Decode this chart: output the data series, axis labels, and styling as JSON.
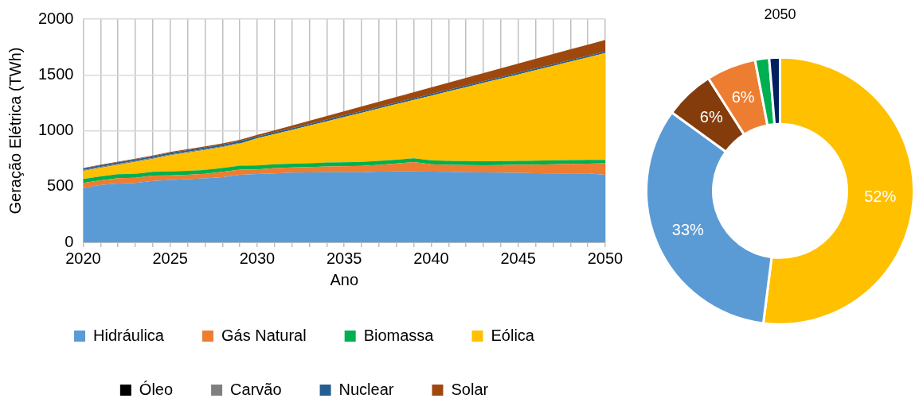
{
  "chart_data": [
    {
      "type": "area",
      "stacked": true,
      "xlabel": "Ano",
      "ylabel": "Geração Elétrica (TWh)",
      "x": [
        2020,
        2021,
        2022,
        2023,
        2024,
        2025,
        2026,
        2027,
        2028,
        2029,
        2030,
        2031,
        2032,
        2033,
        2034,
        2035,
        2036,
        2037,
        2038,
        2039,
        2040,
        2041,
        2042,
        2043,
        2044,
        2045,
        2046,
        2047,
        2048,
        2049,
        2050
      ],
      "series": [
        {
          "name": "Hidráulica",
          "color": "#5b9bd5",
          "values": [
            484,
            515,
            527,
            532,
            549,
            559,
            566,
            573,
            583,
            605,
            612,
            617,
            624,
            626,
            629,
            629,
            629,
            634,
            636,
            636,
            634,
            631,
            629,
            626,
            624,
            622,
            619,
            617,
            617,
            617,
            605
          ]
        },
        {
          "name": "Gás Natural",
          "color": "#ed7d31",
          "values": [
            48,
            41,
            48,
            46,
            48,
            41,
            39,
            41,
            48,
            46,
            41,
            48,
            46,
            48,
            51,
            53,
            56,
            60,
            70,
            82,
            65,
            63,
            63,
            65,
            68,
            73,
            77,
            82,
            85,
            87,
            104
          ]
        },
        {
          "name": "Biomassa",
          "color": "#00b050",
          "values": [
            35,
            35,
            35,
            35,
            35,
            35,
            35,
            35,
            35,
            35,
            35,
            35,
            35,
            35,
            35,
            35,
            35,
            35,
            35,
            35,
            35,
            35,
            35,
            35,
            35,
            35,
            35,
            35,
            35,
            35,
            30
          ]
        },
        {
          "name": "Eólica",
          "color": "#ffc000",
          "values": [
            72,
            77,
            84,
            108,
            116,
            144,
            163,
            178,
            186,
            198,
            244,
            270,
            303,
            337,
            369,
            406,
            440,
            470,
            497,
            522,
            580,
            623,
            663,
            702,
            739,
            774,
            812,
            846,
            882,
            917,
            956
          ]
        },
        {
          "name": "Óleo",
          "color": "#000000",
          "values": [
            null,
            null,
            null,
            null,
            null,
            null,
            null,
            null,
            null,
            null,
            null,
            null,
            null,
            null,
            null,
            null,
            null,
            null,
            null,
            null,
            null,
            null,
            null,
            null,
            null,
            null,
            null,
            null,
            null,
            null,
            null
          ]
        },
        {
          "name": "Carvão",
          "color": "#7f7f7f",
          "values": [
            8,
            8,
            8,
            8,
            8,
            8,
            8,
            8,
            8,
            8,
            null,
            null,
            null,
            null,
            null,
            null,
            null,
            null,
            null,
            null,
            null,
            null,
            null,
            null,
            null,
            null,
            null,
            null,
            null,
            null,
            null
          ]
        },
        {
          "name": "Nuclear",
          "color": "#255e91",
          "values": [
            15,
            15,
            15,
            15,
            15,
            15,
            15,
            15,
            15,
            15,
            15,
            15,
            15,
            15,
            15,
            15,
            15,
            15,
            15,
            15,
            15,
            15,
            15,
            15,
            15,
            15,
            15,
            15,
            15,
            15,
            15
          ]
        },
        {
          "name": "Solar",
          "color": "#9e480e",
          "values": [
            3,
            4,
            5,
            6,
            7,
            8,
            9,
            10,
            11,
            12,
            15,
            19,
            24,
            28,
            33,
            37,
            42,
            46,
            50,
            55,
            59,
            64,
            68,
            73,
            77,
            82,
            86,
            91,
            95,
            100,
            104
          ]
        }
      ],
      "xlim": [
        2020,
        2050
      ],
      "xticks": [
        2020,
        {
          "value": 2021,
          "label": null
        },
        {
          "value": 2022,
          "label": null
        },
        {
          "value": 2023,
          "label": null
        },
        {
          "value": 2024,
          "label": null
        },
        2025,
        {
          "value": 2026,
          "label": null
        },
        {
          "value": 2027,
          "label": null
        },
        {
          "value": 2028,
          "label": null
        },
        {
          "value": 2029,
          "label": null
        },
        2030,
        {
          "value": 2031,
          "label": null
        },
        {
          "value": 2032,
          "label": null
        },
        {
          "value": 2033,
          "label": null
        },
        {
          "value": 2034,
          "label": null
        },
        2035,
        {
          "value": 2036,
          "label": null
        },
        {
          "value": 2037,
          "label": null
        },
        {
          "value": 2038,
          "label": null
        },
        {
          "value": 2039,
          "label": null
        },
        2040,
        {
          "value": 2041,
          "label": null
        },
        {
          "value": 2042,
          "label": null
        },
        {
          "value": 2043,
          "label": null
        },
        {
          "value": 2044,
          "label": null
        },
        2045,
        {
          "value": 2046,
          "label": null
        },
        {
          "value": 2047,
          "label": null
        },
        {
          "value": 2048,
          "label": null
        },
        {
          "value": 2049,
          "label": null
        },
        2050
      ],
      "ylim": [
        0,
        2000
      ],
      "yticks": [
        0,
        500,
        1000,
        1500,
        2000
      ],
      "grid": true,
      "legend": "bottom",
      "marker": "none"
    },
    {
      "type": "donut",
      "title": "2050",
      "categories": [
        null,
        null,
        null,
        null,
        null,
        null
      ],
      "values": [
        52,
        33,
        6,
        6,
        1.7,
        1.3
      ],
      "colors": [
        "#ffc000",
        "#5b9bd5",
        "#843c0c",
        "#ed7d31",
        "#00b050",
        "#002060"
      ],
      "value_labels": [
        "52%",
        "33%",
        "6%",
        "6%",
        null,
        null
      ]
    }
  ]
}
